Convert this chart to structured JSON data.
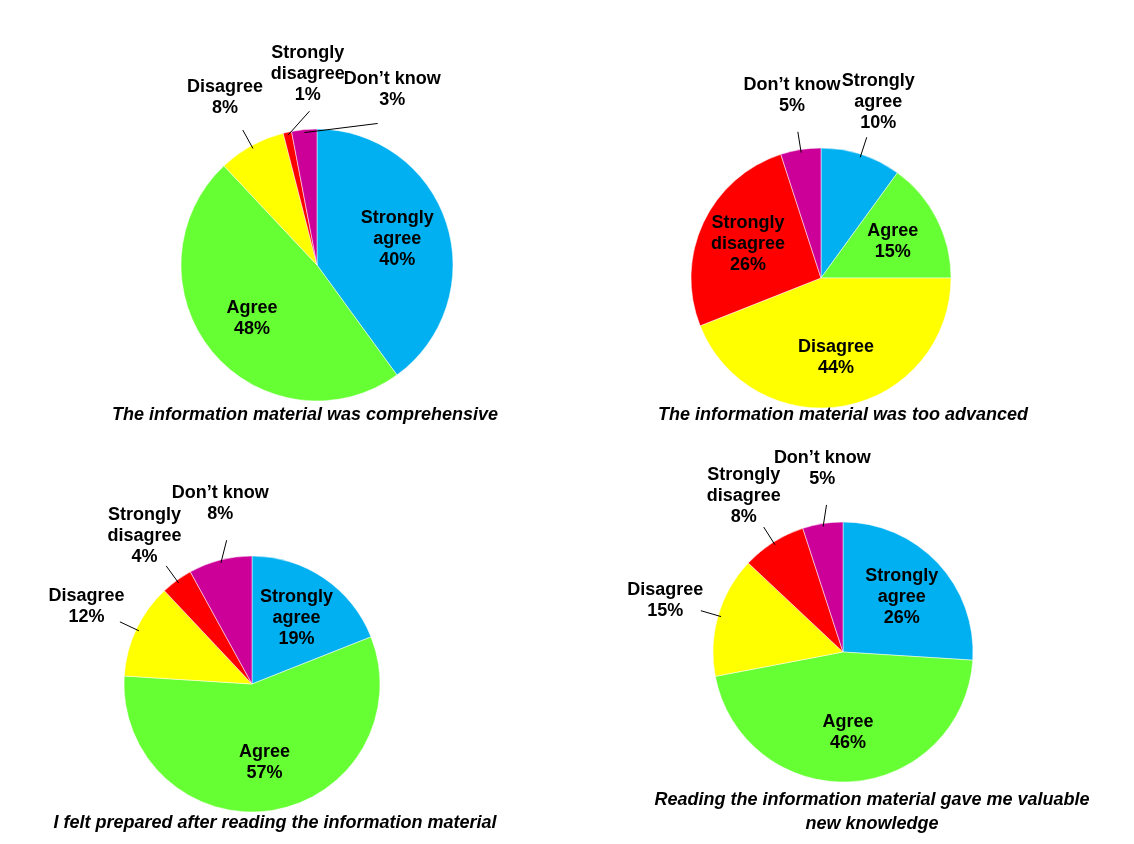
{
  "chart_data": [
    {
      "type": "pie",
      "title": "The information material was comprehensive",
      "categories": [
        "Strongly agree",
        "Agree",
        "Disagree",
        "Strongly disagree",
        "Don’t know"
      ],
      "values": [
        40,
        48,
        8,
        1,
        3
      ],
      "value_labels": [
        "40%",
        "48%",
        "8%",
        "1%",
        "3%"
      ],
      "colors": [
        "#00b0f0",
        "#66ff33",
        "#ffff00",
        "#ff0000",
        "#cc0099"
      ]
    },
    {
      "type": "pie",
      "title": "The information material was too advanced",
      "categories": [
        "Strongly agree",
        "Agree",
        "Disagree",
        "Strongly disagree",
        "Don’t know"
      ],
      "values": [
        10,
        15,
        44,
        26,
        5
      ],
      "value_labels": [
        "10%",
        "15%",
        "44%",
        "26%",
        "5%"
      ],
      "colors": [
        "#00b0f0",
        "#66ff33",
        "#ffff00",
        "#ff0000",
        "#cc0099"
      ]
    },
    {
      "type": "pie",
      "title": "I felt prepared after reading the information material",
      "categories": [
        "Strongly agree",
        "Agree",
        "Disagree",
        "Strongly disagree",
        "Don’t know"
      ],
      "values": [
        19,
        57,
        12,
        4,
        8
      ],
      "value_labels": [
        "19%",
        "57%",
        "12%",
        "4%",
        "8%"
      ],
      "colors": [
        "#00b0f0",
        "#66ff33",
        "#ffff00",
        "#ff0000",
        "#cc0099"
      ]
    },
    {
      "type": "pie",
      "title": "Reading the information material gave me valuable new knowledge",
      "categories": [
        "Strongly agree",
        "Agree",
        "Disagree",
        "Strongly disagree",
        "Don’t know"
      ],
      "values": [
        26,
        46,
        15,
        8,
        5
      ],
      "value_labels": [
        "26%",
        "46%",
        "15%",
        "8%",
        "5%"
      ],
      "colors": [
        "#00b0f0",
        "#66ff33",
        "#ffff00",
        "#ff0000",
        "#cc0099"
      ]
    }
  ]
}
